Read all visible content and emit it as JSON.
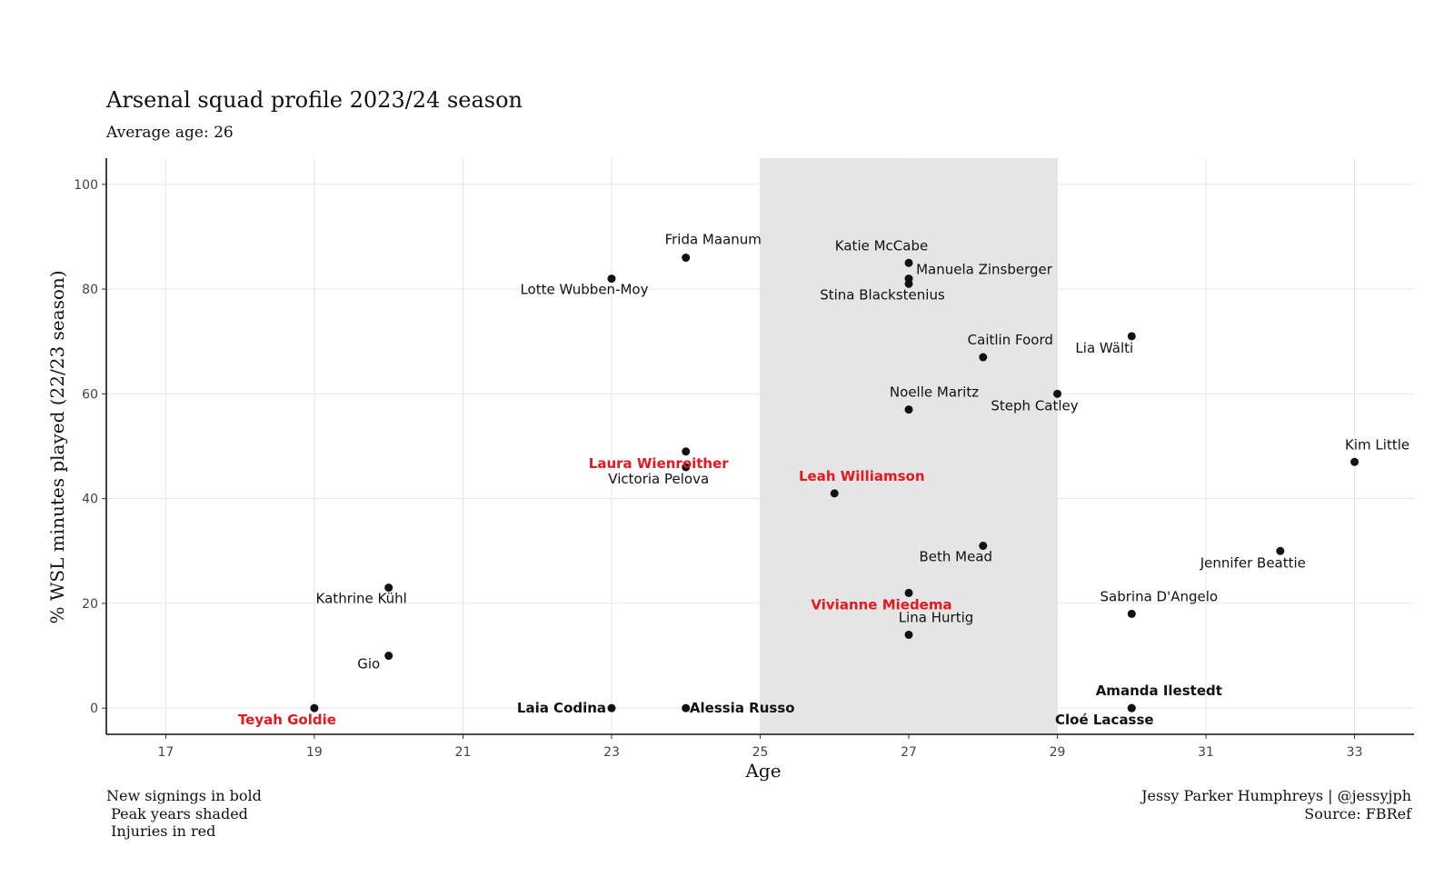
{
  "chart_data": {
    "type": "scatter",
    "title": "Arsenal squad profile 2023/24 season",
    "subtitle": "Average age: 26",
    "xlabel": "Age",
    "ylabel": "% WSL minutes played (22/23 season)",
    "xlim": [
      16.2,
      33.8
    ],
    "ylim": [
      -5,
      105
    ],
    "xticks": [
      17,
      19,
      21,
      23,
      25,
      27,
      29,
      31,
      33
    ],
    "yticks": [
      0,
      20,
      40,
      60,
      80,
      100
    ],
    "grid": true,
    "shaded_band": {
      "x_from": 25,
      "x_to": 29,
      "color": "#e5e5e5"
    },
    "colors": {
      "point": "#111111",
      "label_default": "#111111",
      "label_injury": "#e8161e"
    },
    "points": [
      {
        "name": "Frida Maanum",
        "x": 24,
        "y": 86,
        "new_signing": false,
        "injured": false
      },
      {
        "name": "Lotte Wubben-Moy",
        "x": 23,
        "y": 82,
        "new_signing": false,
        "injured": false
      },
      {
        "name": "Katie McCabe",
        "x": 27,
        "y": 85,
        "new_signing": false,
        "injured": false
      },
      {
        "name": "Manuela Zinsberger",
        "x": 27,
        "y": 82,
        "new_signing": false,
        "injured": false
      },
      {
        "name": "Stina Blackstenius",
        "x": 27,
        "y": 81,
        "new_signing": false,
        "injured": false
      },
      {
        "name": "Lia Wälti",
        "x": 30,
        "y": 71,
        "new_signing": false,
        "injured": false
      },
      {
        "name": "Caitlin Foord",
        "x": 28,
        "y": 67,
        "new_signing": false,
        "injured": false
      },
      {
        "name": "Steph Catley",
        "x": 29,
        "y": 60,
        "new_signing": false,
        "injured": false
      },
      {
        "name": "Noelle Maritz",
        "x": 27,
        "y": 57,
        "new_signing": false,
        "injured": false
      },
      {
        "name": "Kim Little",
        "x": 33,
        "y": 47,
        "new_signing": false,
        "injured": false
      },
      {
        "name": "Laura Wienroither",
        "x": 24,
        "y": 49,
        "new_signing": false,
        "injured": true
      },
      {
        "name": "Victoria Pelova",
        "x": 24,
        "y": 46,
        "new_signing": false,
        "injured": false
      },
      {
        "name": "Leah Williamson",
        "x": 26,
        "y": 41,
        "new_signing": false,
        "injured": true
      },
      {
        "name": "Beth Mead",
        "x": 28,
        "y": 31,
        "new_signing": false,
        "injured": false
      },
      {
        "name": "Jennifer Beattie",
        "x": 32,
        "y": 30,
        "new_signing": false,
        "injured": false
      },
      {
        "name": "Kathrine Kühl",
        "x": 20,
        "y": 23,
        "new_signing": false,
        "injured": false
      },
      {
        "name": "Vivianne Miedema",
        "x": 27,
        "y": 22,
        "new_signing": false,
        "injured": true
      },
      {
        "name": "Sabrina D'Angelo",
        "x": 30,
        "y": 18,
        "new_signing": false,
        "injured": false
      },
      {
        "name": "Lina Hurtig",
        "x": 27,
        "y": 14,
        "new_signing": false,
        "injured": false
      },
      {
        "name": "Gio",
        "x": 20,
        "y": 10,
        "new_signing": false,
        "injured": false
      },
      {
        "name": "Teyah Goldie",
        "x": 19,
        "y": 0,
        "new_signing": true,
        "injured": true
      },
      {
        "name": "Laia Codina",
        "x": 23,
        "y": 0,
        "new_signing": true,
        "injured": false
      },
      {
        "name": "Alessia Russo",
        "x": 24,
        "y": 0,
        "new_signing": true,
        "injured": false
      },
      {
        "name": "Amanda Ilestedt",
        "x": 30,
        "y": 0,
        "new_signing": true,
        "injured": false
      },
      {
        "name": "Cloé Lacasse",
        "x": 30,
        "y": 0,
        "new_signing": true,
        "injured": false
      }
    ]
  },
  "caption": {
    "left": "New signings in bold\n Peak years shaded\n Injuries in red",
    "right": "Jessy Parker Humphreys | @jessyjph\nSource: FBRef"
  }
}
